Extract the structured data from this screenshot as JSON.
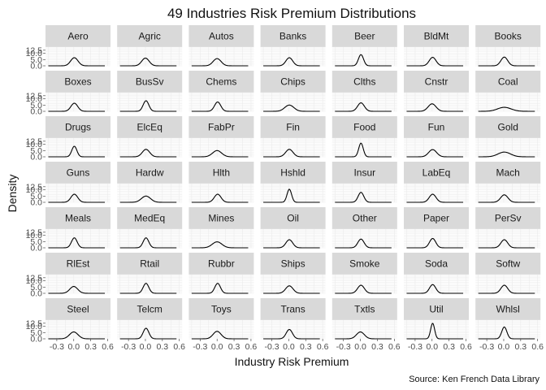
{
  "chart_data": {
    "type": "area",
    "subtype": "faceted-density",
    "title": "49 Industries Risk Premium Distributions",
    "xlabel": "Industry Risk Premium",
    "ylabel": "Density",
    "caption": "Source: Ken French Data Library",
    "xlim": [
      -0.5,
      0.65
    ],
    "ylim": [
      0,
      15
    ],
    "x_ticks": [
      -0.3,
      0.0,
      0.3,
      0.6
    ],
    "x_tick_labels": [
      "-0.3",
      "0.0",
      "0.3",
      "0.6"
    ],
    "y_ticks": [
      0,
      5,
      10,
      12.5
    ],
    "y_tick_labels": [
      "0.0",
      "5.0",
      "10.0",
      "12.5"
    ],
    "grid": true,
    "strip_color": "#d9d9d9",
    "panel_background": "#ffffff",
    "grid_color": "#ebebeb",
    "line_color": "#000000",
    "panels": [
      {
        "name": "Aero",
        "peak_x": 0.01,
        "sd": 0.065,
        "peak_y": 6.5
      },
      {
        "name": "Agric",
        "peak_x": 0.0,
        "sd": 0.065,
        "peak_y": 6.2
      },
      {
        "name": "Autos",
        "peak_x": 0.0,
        "sd": 0.07,
        "peak_y": 5.8
      },
      {
        "name": "Banks",
        "peak_x": 0.01,
        "sd": 0.06,
        "peak_y": 6.5
      },
      {
        "name": "Beer",
        "peak_x": 0.01,
        "sd": 0.045,
        "peak_y": 9.0
      },
      {
        "name": "BldMt",
        "peak_x": 0.01,
        "sd": 0.06,
        "peak_y": 6.8
      },
      {
        "name": "Books",
        "peak_x": 0.01,
        "sd": 0.06,
        "peak_y": 7.0
      },
      {
        "name": "Boxes",
        "peak_x": 0.01,
        "sd": 0.06,
        "peak_y": 6.5
      },
      {
        "name": "BusSv",
        "peak_x": 0.01,
        "sd": 0.05,
        "peak_y": 8.5
      },
      {
        "name": "Chems",
        "peak_x": 0.01,
        "sd": 0.055,
        "peak_y": 7.5
      },
      {
        "name": "Chips",
        "peak_x": 0.01,
        "sd": 0.08,
        "peak_y": 5.0
      },
      {
        "name": "Clths",
        "peak_x": 0.01,
        "sd": 0.06,
        "peak_y": 6.8
      },
      {
        "name": "Cnstr",
        "peak_x": 0.0,
        "sd": 0.07,
        "peak_y": 6.0
      },
      {
        "name": "Coal",
        "peak_x": 0.01,
        "sd": 0.12,
        "peak_y": 3.2
      },
      {
        "name": "Drugs",
        "peak_x": 0.01,
        "sd": 0.045,
        "peak_y": 8.5
      },
      {
        "name": "ElcEq",
        "peak_x": 0.01,
        "sd": 0.065,
        "peak_y": 6.0
      },
      {
        "name": "FabPr",
        "peak_x": 0.0,
        "sd": 0.08,
        "peak_y": 5.0
      },
      {
        "name": "Fin",
        "peak_x": 0.01,
        "sd": 0.065,
        "peak_y": 6.0
      },
      {
        "name": "Food",
        "peak_x": 0.01,
        "sd": 0.04,
        "peak_y": 11.0
      },
      {
        "name": "Fun",
        "peak_x": 0.01,
        "sd": 0.07,
        "peak_y": 5.8
      },
      {
        "name": "Gold",
        "peak_x": 0.01,
        "sd": 0.11,
        "peak_y": 3.8
      },
      {
        "name": "Guns",
        "peak_x": 0.01,
        "sd": 0.06,
        "peak_y": 6.5
      },
      {
        "name": "Hardw",
        "peak_x": 0.01,
        "sd": 0.08,
        "peak_y": 5.0
      },
      {
        "name": "Hlth",
        "peak_x": 0.01,
        "sd": 0.06,
        "peak_y": 6.5
      },
      {
        "name": "Hshld",
        "peak_x": 0.01,
        "sd": 0.04,
        "peak_y": 10.5
      },
      {
        "name": "Insur",
        "peak_x": 0.01,
        "sd": 0.05,
        "peak_y": 8.0
      },
      {
        "name": "LabEq",
        "peak_x": 0.01,
        "sd": 0.06,
        "peak_y": 6.5
      },
      {
        "name": "Mach",
        "peak_x": 0.01,
        "sd": 0.065,
        "peak_y": 6.0
      },
      {
        "name": "Meals",
        "peak_x": 0.01,
        "sd": 0.05,
        "peak_y": 8.0
      },
      {
        "name": "MedEq",
        "peak_x": 0.01,
        "sd": 0.05,
        "peak_y": 8.0
      },
      {
        "name": "Mines",
        "peak_x": 0.0,
        "sd": 0.085,
        "peak_y": 4.8
      },
      {
        "name": "Oil",
        "peak_x": 0.01,
        "sd": 0.06,
        "peak_y": 6.5
      },
      {
        "name": "Other",
        "peak_x": 0.01,
        "sd": 0.055,
        "peak_y": 7.0
      },
      {
        "name": "Paper",
        "peak_x": 0.01,
        "sd": 0.055,
        "peak_y": 7.5
      },
      {
        "name": "PerSv",
        "peak_x": 0.01,
        "sd": 0.06,
        "peak_y": 6.5
      },
      {
        "name": "RlEst",
        "peak_x": 0.0,
        "sd": 0.07,
        "peak_y": 5.5
      },
      {
        "name": "Rtail",
        "peak_x": 0.01,
        "sd": 0.05,
        "peak_y": 8.0
      },
      {
        "name": "Rubbr",
        "peak_x": 0.01,
        "sd": 0.05,
        "peak_y": 8.0
      },
      {
        "name": "Ships",
        "peak_x": 0.01,
        "sd": 0.065,
        "peak_y": 6.0
      },
      {
        "name": "Smoke",
        "peak_x": 0.01,
        "sd": 0.06,
        "peak_y": 6.5
      },
      {
        "name": "Soda",
        "peak_x": 0.01,
        "sd": 0.055,
        "peak_y": 7.0
      },
      {
        "name": "Softw",
        "peak_x": 0.01,
        "sd": 0.06,
        "peak_y": 6.5
      },
      {
        "name": "Steel",
        "peak_x": 0.0,
        "sd": 0.075,
        "peak_y": 5.5
      },
      {
        "name": "Telcm",
        "peak_x": 0.01,
        "sd": 0.05,
        "peak_y": 8.5
      },
      {
        "name": "Toys",
        "peak_x": 0.0,
        "sd": 0.07,
        "peak_y": 6.0
      },
      {
        "name": "Trans",
        "peak_x": 0.01,
        "sd": 0.055,
        "peak_y": 7.5
      },
      {
        "name": "Txtls",
        "peak_x": 0.0,
        "sd": 0.07,
        "peak_y": 5.5
      },
      {
        "name": "Util",
        "peak_x": 0.01,
        "sd": 0.035,
        "peak_y": 12.5
      },
      {
        "name": "Whlsl",
        "peak_x": 0.01,
        "sd": 0.045,
        "peak_y": 9.5
      }
    ]
  }
}
